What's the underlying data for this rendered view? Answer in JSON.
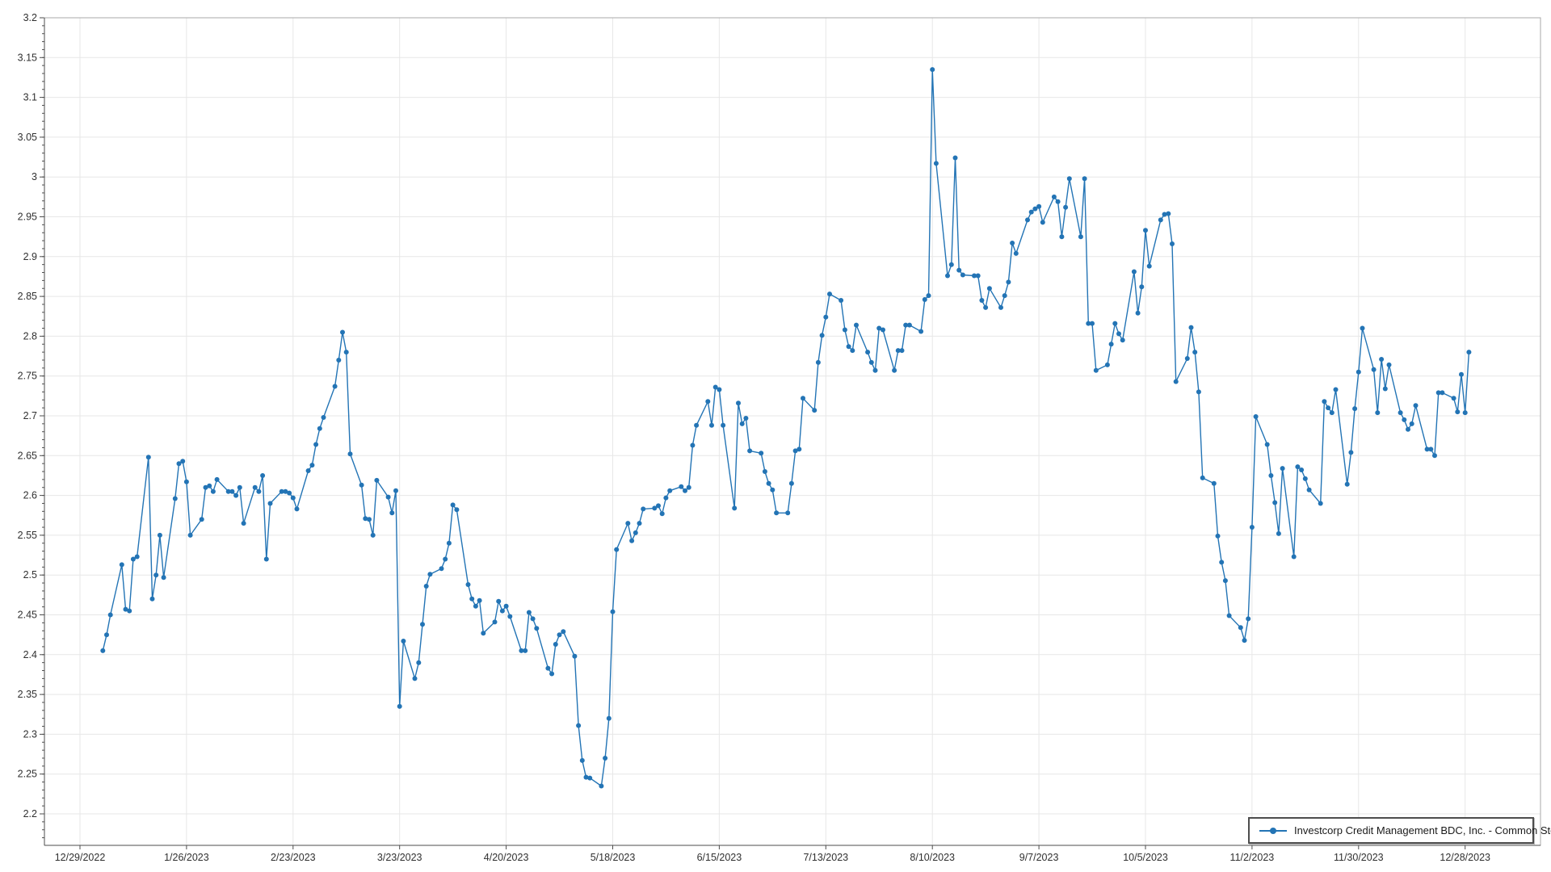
{
  "window": {
    "background": "#ffffff"
  },
  "styles": {
    "line_color": "#2374b5",
    "marker_color": "#2374b5",
    "grid_color": "#e7e7e7",
    "plot_border_color": "#a9a9a9",
    "axis_color": "#4d4d4d",
    "tick_text_color": "#303030",
    "legend_border_color": "#4d4d4d",
    "legend_background": "#ffffff"
  },
  "chart_data": {
    "type": "line",
    "title": "",
    "xlabel": "",
    "ylabel": "",
    "grid": true,
    "x_axis": {
      "first_tick_date": "2022-12-29",
      "tick_interval_days": 28,
      "tick_labels": [
        "12/29/2022",
        "1/26/2023",
        "2/23/2023",
        "3/23/2023",
        "4/20/2023",
        "5/18/2023",
        "6/15/2023",
        "7/13/2023",
        "8/10/2023",
        "9/7/2023",
        "10/5/2023",
        "11/2/2023",
        "11/30/2023",
        "12/28/2023"
      ]
    },
    "y_axis": {
      "min": 2.2,
      "max": 3.2,
      "major_step": 0.05,
      "minor_step": 0.01,
      "tick_labels": [
        "2.2",
        "2.25",
        "2.3",
        "2.35",
        "2.4",
        "2.45",
        "2.5",
        "2.55",
        "2.6",
        "2.65",
        "2.7",
        "2.75",
        "2.8",
        "2.85",
        "2.9",
        "2.95",
        "3",
        "3.05",
        "3.1",
        "3.15",
        "3.2"
      ]
    },
    "legend": {
      "position": "bottom-right",
      "label": "Investcorp Credit Management BDC, Inc. - Common Stock"
    },
    "series": [
      {
        "name": "Investcorp Credit Management BDC, Inc. - Common Stock",
        "color": "#2374b5",
        "marker": "circle",
        "frequency": "trading-days (weekdays)",
        "start_date": "2023-01-04",
        "end_date": "2023-12-29",
        "values": [
          2.405,
          2.425,
          2.45,
          2.513,
          2.457,
          2.455,
          2.52,
          2.523,
          2.648,
          2.47,
          2.5,
          2.55,
          2.497,
          2.596,
          2.64,
          2.643,
          2.617,
          2.55,
          2.57,
          2.61,
          2.612,
          2.605,
          2.62,
          2.605,
          2.605,
          2.6,
          2.61,
          2.565,
          2.61,
          2.605,
          2.625,
          2.52,
          2.59,
          2.605,
          2.605,
          2.603,
          2.597,
          2.583,
          2.631,
          2.638,
          2.664,
          2.684,
          2.698,
          2.737,
          2.77,
          2.805,
          2.78,
          2.652,
          2.613,
          2.571,
          2.57,
          2.55,
          2.619,
          2.598,
          2.578,
          2.606,
          2.335,
          2.417,
          2.37,
          2.39,
          2.438,
          2.486,
          2.501,
          2.508,
          2.52,
          2.54,
          2.588,
          2.582,
          2.488,
          2.47,
          2.461,
          2.468,
          2.427,
          2.441,
          2.467,
          2.455,
          2.461,
          2.448,
          2.405,
          2.405,
          2.453,
          2.445,
          2.433,
          2.383,
          2.376,
          2.413,
          2.425,
          2.429,
          2.398,
          2.311,
          2.267,
          2.246,
          2.245,
          2.235,
          2.27,
          2.32,
          2.454,
          2.532,
          2.565,
          2.543,
          2.553,
          2.565,
          2.583,
          2.584,
          2.587,
          2.577,
          2.597,
          2.606,
          2.611,
          2.606,
          2.61,
          2.663,
          2.688,
          2.718,
          2.688,
          2.736,
          2.733,
          2.688,
          2.584,
          2.716,
          2.69,
          2.697,
          2.656,
          2.653,
          2.63,
          2.615,
          2.607,
          2.578,
          2.578,
          2.615,
          2.656,
          2.658,
          2.722,
          2.707,
          2.767,
          2.801,
          2.824,
          2.853,
          2.845,
          2.808,
          2.787,
          2.782,
          2.814,
          2.78,
          2.767,
          2.757,
          2.81,
          2.808,
          2.757,
          2.782,
          2.782,
          2.814,
          2.814,
          2.806,
          2.846,
          2.851,
          3.135,
          3.017,
          2.876,
          2.89,
          3.024,
          2.883,
          2.877,
          2.876,
          2.876,
          2.845,
          2.836,
          2.86,
          2.836,
          2.851,
          2.868,
          2.917,
          2.904,
          2.946,
          2.956,
          2.96,
          2.963,
          2.943,
          2.975,
          2.969,
          2.925,
          2.962,
          2.998,
          2.925,
          2.998,
          2.816,
          2.816,
          2.757,
          2.764,
          2.79,
          2.816,
          2.803,
          2.795,
          2.881,
          2.829,
          2.862,
          2.933,
          2.888,
          2.946,
          2.953,
          2.954,
          2.916,
          2.743,
          2.772,
          2.811,
          2.78,
          2.73,
          2.622,
          2.615,
          2.549,
          2.516,
          2.493,
          2.449,
          2.434,
          2.418,
          2.445,
          2.56,
          2.699,
          2.664,
          2.625,
          2.591,
          2.552,
          2.634,
          2.523,
          2.636,
          2.632,
          2.621,
          2.607,
          2.59,
          2.718,
          2.71,
          2.704,
          2.733,
          2.614,
          2.654,
          2.709,
          2.755,
          2.81,
          2.758,
          2.704,
          2.771,
          2.734,
          2.764,
          2.704,
          2.695,
          2.683,
          2.69,
          2.713,
          2.658,
          2.658,
          2.65,
          2.729,
          2.729,
          2.722,
          2.705,
          2.752,
          2.704,
          2.78
        ]
      }
    ]
  }
}
